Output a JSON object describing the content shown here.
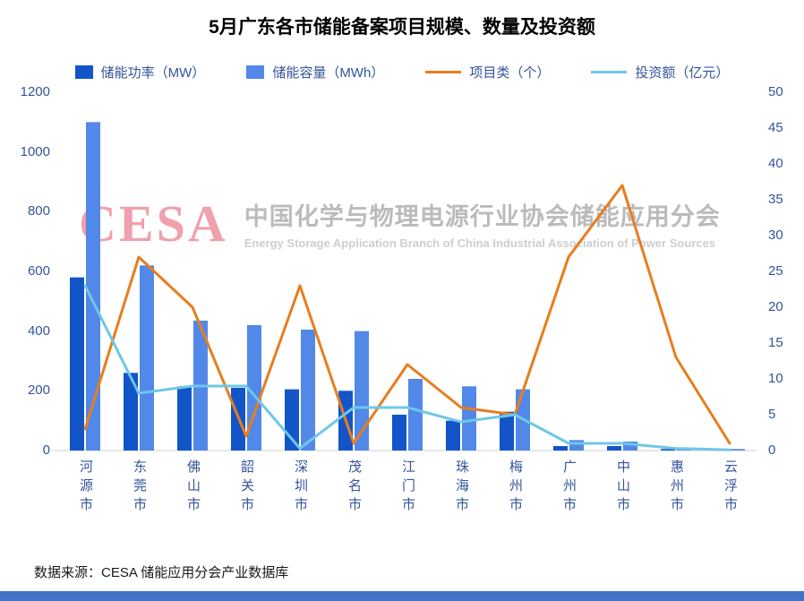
{
  "title": "5月广东各市储能备案项目规模、数量及投资额",
  "source_note": "数据来源：CESA 储能应用分会产业数据库",
  "watermark": {
    "logo": "CESA",
    "cn": "中国化学与物理电源行业协会储能应用分会",
    "en": "Energy Storage Application Branch of China Industrial Association of Power Sources"
  },
  "colors": {
    "bar_power": "#1355C8",
    "bar_capacity": "#5288E8",
    "line_projects": "#E87D1E",
    "line_investment": "#6EC7E8",
    "axis_text": "#33549C",
    "bottom_strip": "#4472C4"
  },
  "chart_data": {
    "type": "bar",
    "subtype": "combo-bar-line-dual-axis",
    "title": "5月广东各市储能备案项目规模、数量及投资额",
    "categories": [
      "河源市",
      "东莞市",
      "佛山市",
      "韶关市",
      "深圳市",
      "茂名市",
      "江门市",
      "珠海市",
      "梅州市",
      "广州市",
      "中山市",
      "惠州市",
      "云浮市"
    ],
    "series": [
      {
        "name": "储能功率（MW）",
        "type": "bar",
        "axis": "left",
        "color": "#1355C8",
        "values": [
          580,
          260,
          215,
          210,
          205,
          200,
          120,
          100,
          130,
          15,
          15,
          5,
          3
        ]
      },
      {
        "name": "储能容量（MWh）",
        "type": "bar",
        "axis": "left",
        "color": "#5288E8",
        "values": [
          1100,
          620,
          435,
          420,
          405,
          400,
          240,
          215,
          205,
          35,
          30,
          8,
          5
        ]
      },
      {
        "name": "项目类（个）",
        "type": "line",
        "axis": "right",
        "color": "#E87D1E",
        "values": [
          3,
          27,
          20,
          2,
          23,
          1,
          12,
          6,
          5,
          27,
          37,
          13,
          1
        ]
      },
      {
        "name": "投资额（亿元）",
        "type": "line",
        "axis": "right",
        "color": "#6EC7E8",
        "values": [
          23,
          8,
          9,
          9,
          0.3,
          6,
          6,
          4,
          5,
          1,
          1,
          0.3,
          0.1
        ]
      }
    ],
    "left_axis": {
      "min": 0,
      "max": 1200,
      "step": 200
    },
    "right_axis": {
      "min": 0,
      "max": 50,
      "step": 5
    },
    "grid": false,
    "legend_position": "top"
  }
}
